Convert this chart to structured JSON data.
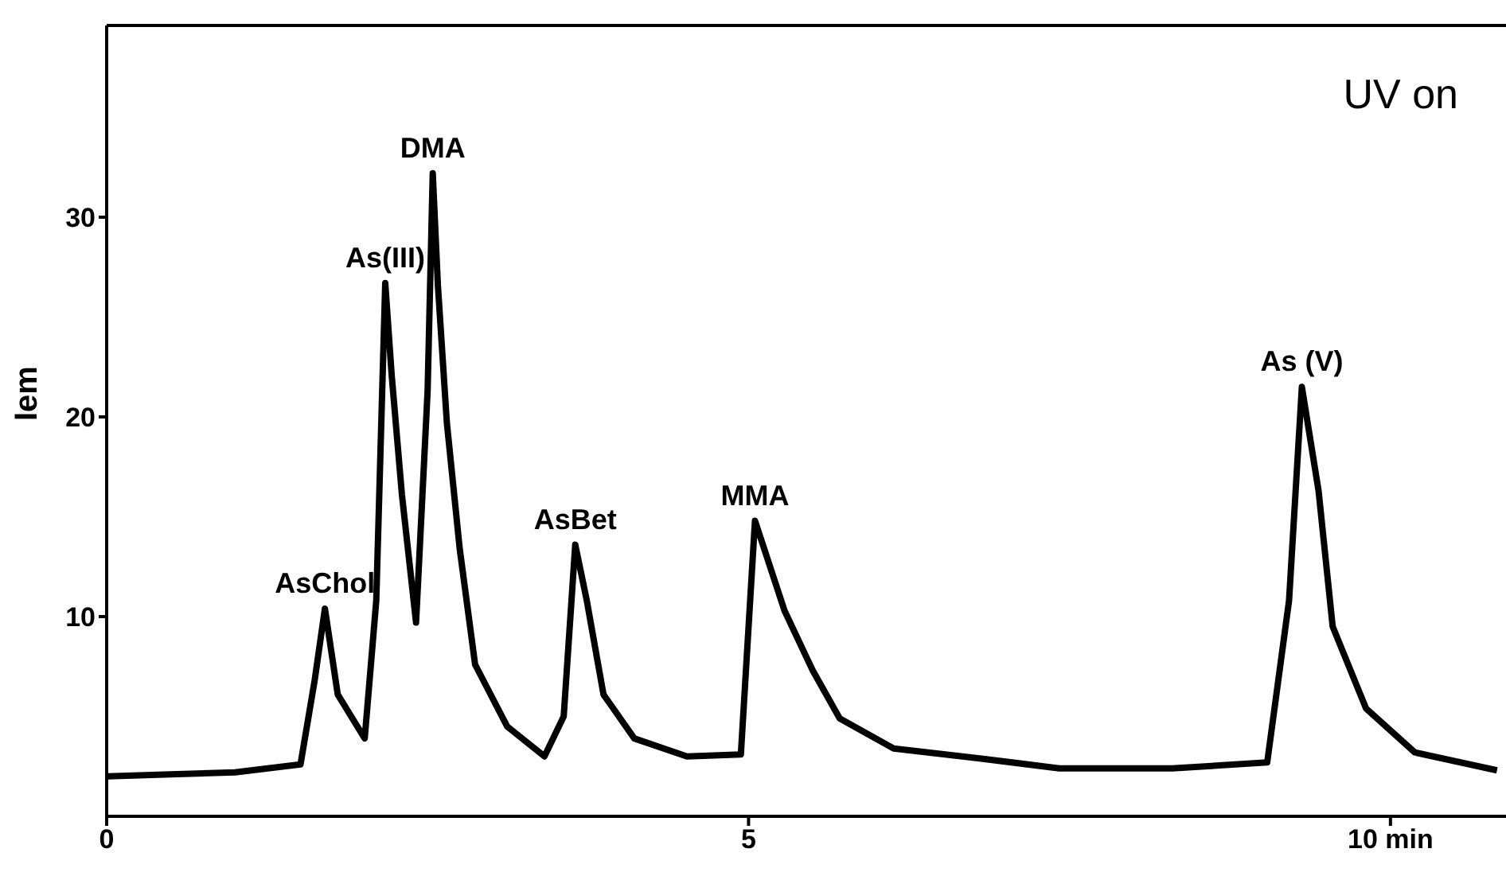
{
  "chart_data": {
    "type": "line",
    "ylabel": "Iem",
    "xlim": [
      0,
      10.9
    ],
    "ylim": [
      0,
      39.6
    ],
    "xticks": [
      0,
      5,
      {
        "value": 10,
        "label": "10 min"
      }
    ],
    "yticks": [
      10,
      20,
      30
    ],
    "grid": false,
    "legend": false,
    "marker": "none",
    "line_style": "solid",
    "x": [
      0.01,
      0.5,
      1.0,
      1.51,
      1.62,
      1.7,
      1.8,
      2.01,
      2.1,
      2.17,
      2.22,
      2.3,
      2.41,
      2.5,
      2.54,
      2.58,
      2.65,
      2.75,
      2.87,
      3.12,
      3.41,
      3.56,
      3.65,
      3.74,
      3.87,
      4.11,
      4.52,
      4.94,
      5.05,
      5.28,
      5.5,
      5.71,
      6.13,
      6.8,
      7.42,
      8.3,
      9.04,
      9.21,
      9.31,
      9.44,
      9.55,
      9.81,
      10.19,
      10.83
    ],
    "series": [
      {
        "color": "#000000",
        "values": [
          2.0,
          2.1,
          2.2,
          2.6,
          6.8,
          10.4,
          6.1,
          3.9,
          10.8,
          26.7,
          22.1,
          16.1,
          9.7,
          21.3,
          32.2,
          26.6,
          19.7,
          13.4,
          7.6,
          4.5,
          3.0,
          5.0,
          13.6,
          10.8,
          6.1,
          3.9,
          3.0,
          3.1,
          14.8,
          10.3,
          7.3,
          4.9,
          3.4,
          2.9,
          2.4,
          2.4,
          2.7,
          10.8,
          21.5,
          16.3,
          9.5,
          5.4,
          3.2,
          2.3
        ]
      }
    ],
    "annotations": [
      "UV on",
      {
        "text": "AsChol",
        "x": 1.7,
        "y": 10.4
      },
      {
        "text": "As(III)",
        "x": 2.17,
        "y": 26.7
      },
      {
        "text": "DMA",
        "x": 2.54,
        "y": 32.2
      },
      {
        "text": "AsBet",
        "x": 3.65,
        "y": 13.6
      },
      {
        "text": "MMA",
        "x": 5.05,
        "y": 14.8
      },
      {
        "text": "As (V)",
        "x": 9.31,
        "y": 21.5
      }
    ]
  }
}
